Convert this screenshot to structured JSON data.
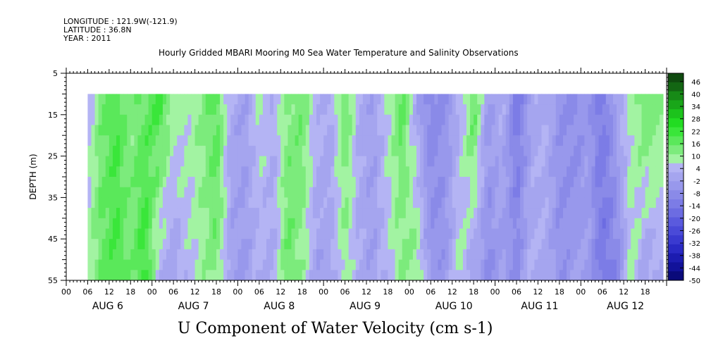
{
  "header": {
    "longitude": "LONGITUDE : 121.9W(-121.9)",
    "latitude": "LATITUDE : 36.8N",
    "year": "YEAR : 2011"
  },
  "chart_data": {
    "type": "heatmap",
    "title": "Hourly Gridded MBARI Mooring M0 Sea Water Temperature and Salinity Observations",
    "variable_title": "U Component of Water Velocity (cm s-1)",
    "ylabel": "DEPTH (m)",
    "ylim": [
      5,
      55
    ],
    "y_inverted": true,
    "y_ticks": [
      5,
      15,
      25,
      35,
      45,
      55
    ],
    "x_hour_labels": [
      "00",
      "06",
      "12",
      "18",
      "00",
      "06",
      "12",
      "18",
      "00",
      "06",
      "12",
      "18",
      "00",
      "06",
      "12",
      "18",
      "00",
      "06",
      "12",
      "18",
      "00",
      "06",
      "12",
      "18",
      "00",
      "06",
      "12",
      "18"
    ],
    "x_day_labels": [
      "AUG  6",
      "AUG  7",
      "AUG  8",
      "AUG  9",
      "AUG 10",
      "AUG 11",
      "AUG 12"
    ],
    "x_range_hours": [
      0,
      168
    ],
    "data_x_range_hours": [
      6,
      167
    ],
    "data_y_range": [
      10,
      55
    ],
    "colorbar_labels": [
      "46",
      "40",
      "34",
      "28",
      "22",
      "16",
      "10",
      "4",
      "-2",
      "-8",
      "-14",
      "-20",
      "-26",
      "-32",
      "-38",
      "-44",
      "-50"
    ],
    "colorbar_range": [
      -50,
      50
    ],
    "colors": {
      "green_scale": [
        "#0f4a0f",
        "#136613",
        "#178a17",
        "#19a619",
        "#1cc31c",
        "#22dc22",
        "#3ae63a",
        "#5ae85a",
        "#7ceb7c",
        "#a2f3a2"
      ],
      "blue_scale": [
        "#b4b4f4",
        "#a5a5ef",
        "#9898ec",
        "#8a8ae8",
        "#7c7ce6",
        "#6c6ce2",
        "#5a5ade",
        "#4a4ad8",
        "#3a3ad0",
        "#2a2ac4",
        "#1c1cb0",
        "#12129a",
        "#0a0a7a"
      ]
    },
    "u_profile_hours": [
      6,
      10,
      14,
      18,
      22,
      26,
      30,
      34,
      38,
      42,
      46,
      50,
      54,
      58,
      62,
      66,
      70,
      74,
      78,
      82,
      86,
      90,
      94,
      98,
      102,
      106,
      110,
      114,
      118,
      122,
      126,
      130,
      134,
      138,
      142,
      146,
      150,
      154,
      158,
      162,
      166
    ],
    "u_surface": [
      -5,
      12,
      18,
      8,
      14,
      22,
      6,
      3,
      8,
      18,
      -6,
      -10,
      2,
      -4,
      8,
      12,
      -2,
      -8,
      14,
      -6,
      -10,
      2,
      16,
      -8,
      -22,
      -16,
      -6,
      18,
      -12,
      -4,
      -28,
      -10,
      -4,
      -16,
      -20,
      -14,
      -26,
      -8,
      2,
      14,
      10
    ],
    "u_bottom": [
      4,
      14,
      20,
      10,
      24,
      -6,
      -10,
      -2,
      4,
      10,
      -10,
      -12,
      -4,
      -6,
      14,
      6,
      -10,
      -8,
      4,
      -6,
      -10,
      -2,
      6,
      8,
      -14,
      -14,
      4,
      -10,
      -18,
      -12,
      -18,
      -4,
      -6,
      -16,
      -12,
      -10,
      -28,
      -22,
      4,
      -10,
      -6
    ]
  }
}
